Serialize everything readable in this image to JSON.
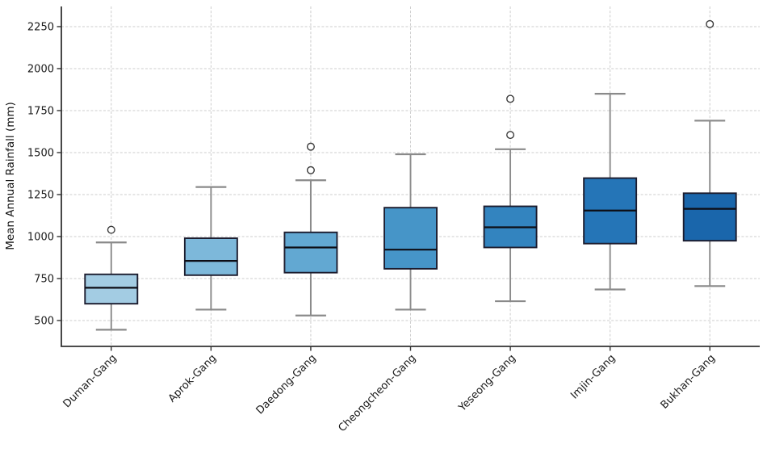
{
  "chart_data": {
    "type": "box",
    "title": "",
    "xlabel": "",
    "ylabel": "Mean Annual Rainfall (mm)",
    "categories": [
      "Duman-Gang",
      "Aprok-Gang",
      "Daedong-Gang",
      "Cheongcheon-Gang",
      "Yeseong-Gang",
      "Imjin-Gang",
      "Bukhan-Gang"
    ],
    "yticks": [
      500,
      750,
      1000,
      1250,
      1500,
      1750,
      2000,
      2250
    ],
    "ylim": [
      346,
      2370
    ],
    "grid": {
      "horizontal": true,
      "vertical": true,
      "line_style": "dashed"
    },
    "legend": {
      "visible": false
    },
    "series": [
      {
        "name": "Duman-Gang",
        "whisker_low": 445,
        "q1": 600,
        "median": 695,
        "q3": 775,
        "whisker_high": 965,
        "outliers": [
          1040
        ],
        "color": "#a3cce3"
      },
      {
        "name": "Aprok-Gang",
        "whisker_low": 565,
        "q1": 770,
        "median": 855,
        "q3": 990,
        "whisker_high": 1295,
        "outliers": [],
        "color": "#7db8da"
      },
      {
        "name": "Daedong-Gang",
        "whisker_low": 530,
        "q1": 785,
        "median": 935,
        "q3": 1025,
        "whisker_high": 1335,
        "outliers": [
          1395,
          1535
        ],
        "color": "#62a8d2"
      },
      {
        "name": "Cheongcheon-Gang",
        "whisker_low": 565,
        "q1": 808,
        "median": 922,
        "q3": 1172,
        "whisker_high": 1490,
        "outliers": [],
        "color": "#4695c8"
      },
      {
        "name": "Yeseong-Gang",
        "whisker_low": 615,
        "q1": 935,
        "median": 1055,
        "q3": 1180,
        "whisker_high": 1520,
        "outliers": [
          1605,
          1820
        ],
        "color": "#3384bf"
      },
      {
        "name": "Imjin-Gang",
        "whisker_low": 685,
        "q1": 958,
        "median": 1155,
        "q3": 1348,
        "whisker_high": 1850,
        "outliers": [],
        "color": "#2575b7"
      },
      {
        "name": "Bukhan-Gang",
        "whisker_low": 705,
        "q1": 975,
        "median": 1165,
        "q3": 1258,
        "whisker_high": 1690,
        "outliers": [
          2265
        ],
        "color": "#1a66ab"
      }
    ],
    "style": {
      "background": "#ffffff",
      "grid_color": "#cccccc",
      "spine_color": "#333333",
      "tick_color": "#333333",
      "tick_label_color": "#1a1a1a",
      "axis_label_color": "#111111",
      "whisker_color": "#8a8a8a",
      "box_edge_color": "#1c1c2e",
      "median_color": "#0d0d15",
      "outlier_edge_color": "#3a3a3a",
      "outlier_fill": "#ffffff"
    }
  }
}
